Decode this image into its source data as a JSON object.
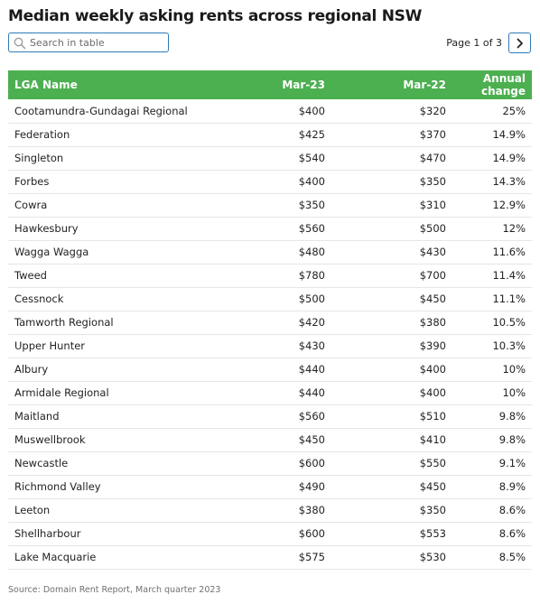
{
  "title": "Median weekly asking rents across regional NSW",
  "search": {
    "placeholder": "Search in table"
  },
  "pagination": {
    "label": "Page 1 of 3"
  },
  "table": {
    "headers": [
      "LGA Name",
      "Mar-23",
      "Mar-22",
      "Annual change"
    ],
    "rows": [
      [
        "Cootamundra-Gundagai Regional",
        "$400",
        "$320",
        "25%"
      ],
      [
        "Federation",
        "$425",
        "$370",
        "14.9%"
      ],
      [
        "Singleton",
        "$540",
        "$470",
        "14.9%"
      ],
      [
        "Forbes",
        "$400",
        "$350",
        "14.3%"
      ],
      [
        "Cowra",
        "$350",
        "$310",
        "12.9%"
      ],
      [
        "Hawkesbury",
        "$560",
        "$500",
        "12%"
      ],
      [
        "Wagga Wagga",
        "$480",
        "$430",
        "11.6%"
      ],
      [
        "Tweed",
        "$780",
        "$700",
        "11.4%"
      ],
      [
        "Cessnock",
        "$500",
        "$450",
        "11.1%"
      ],
      [
        "Tamworth Regional",
        "$420",
        "$380",
        "10.5%"
      ],
      [
        "Upper Hunter",
        "$430",
        "$390",
        "10.3%"
      ],
      [
        "Albury",
        "$440",
        "$400",
        "10%"
      ],
      [
        "Armidale Regional",
        "$440",
        "$400",
        "10%"
      ],
      [
        "Maitland",
        "$560",
        "$510",
        "9.8%"
      ],
      [
        "Muswellbrook",
        "$450",
        "$410",
        "9.8%"
      ],
      [
        "Newcastle",
        "$600",
        "$550",
        "9.1%"
      ],
      [
        "Richmond Valley",
        "$490",
        "$450",
        "8.9%"
      ],
      [
        "Leeton",
        "$380",
        "$350",
        "8.6%"
      ],
      [
        "Shellharbour",
        "$600",
        "$553",
        "8.6%"
      ],
      [
        "Lake Macquarie",
        "$575",
        "$530",
        "8.5%"
      ]
    ]
  },
  "source": "Source: Domain Rent Report, March quarter 2023",
  "colors": {
    "header_bg": "#4caf50",
    "header_text": "#ffffff",
    "accent_border": "#2f7ab8"
  },
  "icons": {
    "search": "search-icon",
    "next": "chevron-right-icon"
  }
}
